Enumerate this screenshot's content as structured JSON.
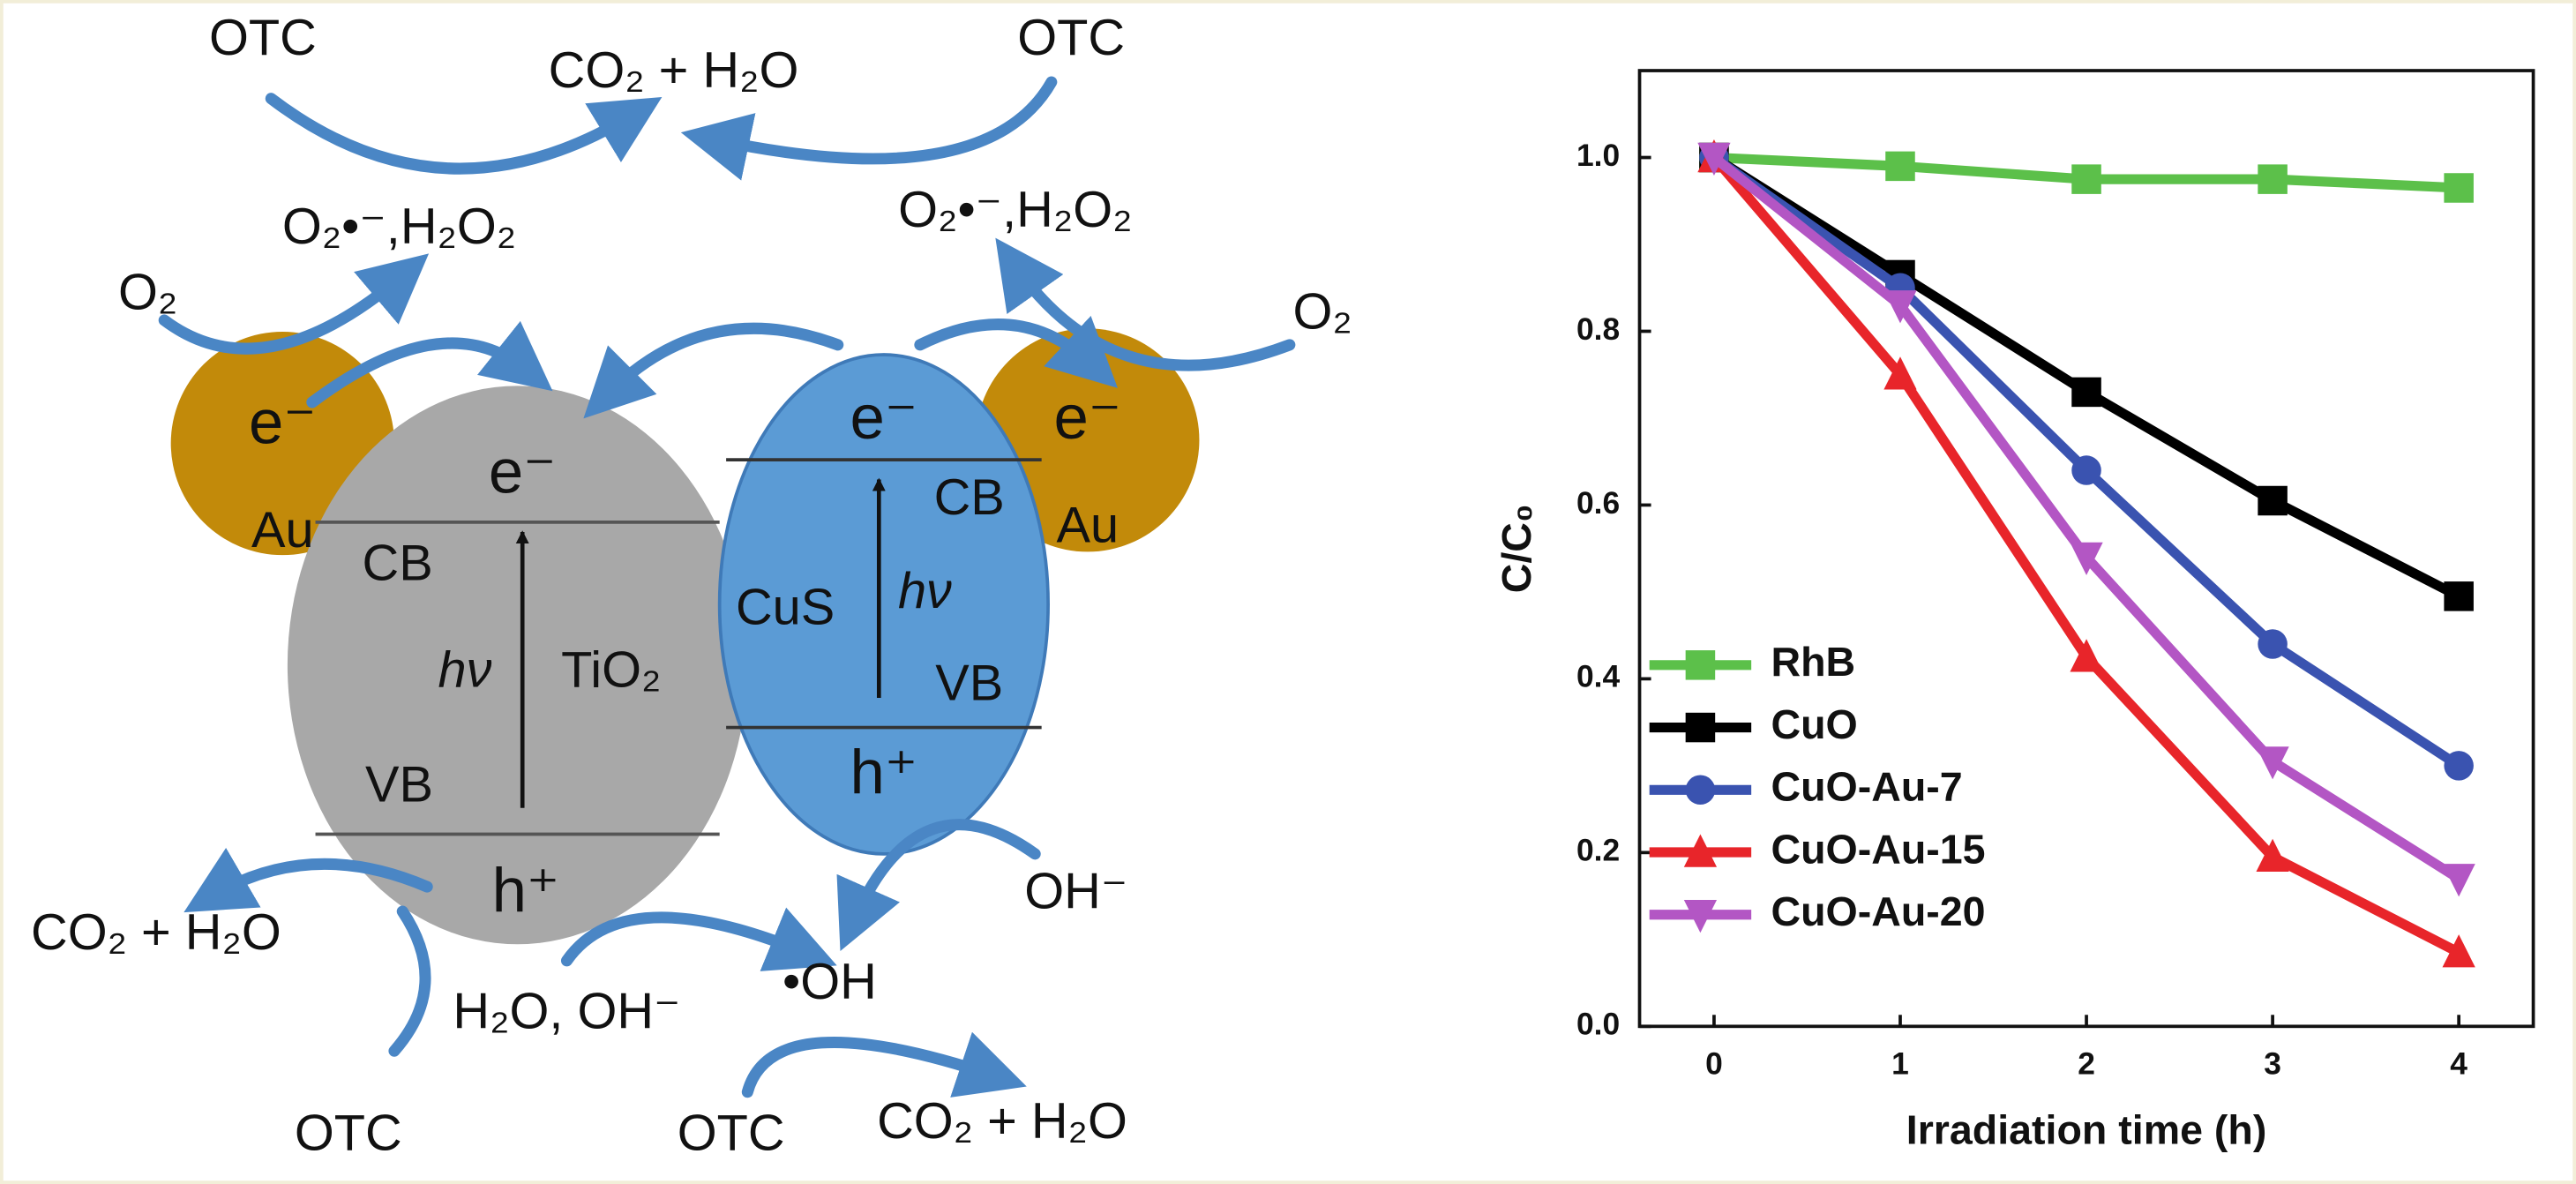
{
  "diagram": {
    "texts": [
      "OTC",
      "CO₂ + H₂O",
      "OTC",
      "O₂•⁻,H₂O₂",
      "O₂•⁻,H₂O₂",
      "O₂",
      "O₂",
      "e⁻",
      "Au",
      "e⁻",
      "CB",
      "hν",
      "TiO₂",
      "VB",
      "h⁺",
      "e⁻",
      "CB",
      "CuS",
      "hν",
      "VB",
      "h⁺",
      "e⁻",
      "Au",
      "CO₂ + H₂O",
      "OTC",
      "H₂O, OH⁻",
      "•OH",
      "OH⁻",
      "OTC",
      "CO₂ + H₂O"
    ]
  },
  "chart_data": {
    "type": "line",
    "x_label": "Irradiation time (h)",
    "y_label": "C/C₀",
    "x": [
      0,
      1,
      2,
      3,
      4
    ],
    "series": [
      {
        "name": "RhB",
        "color": "#5cc04a",
        "marker": "square",
        "values": [
          1.0,
          0.99,
          0.975,
          0.975,
          0.965
        ]
      },
      {
        "name": "CuO",
        "color": "#000000",
        "marker": "square",
        "values": [
          1.0,
          0.865,
          0.73,
          0.605,
          0.495
        ]
      },
      {
        "name": "CuO-Au-7",
        "color": "#3a53b0",
        "marker": "circle",
        "values": [
          1.0,
          0.85,
          0.64,
          0.44,
          0.3
        ]
      },
      {
        "name": "CuO-Au-15",
        "color": "#e8252a",
        "marker": "triangle-up",
        "values": [
          1.0,
          0.75,
          0.425,
          0.195,
          0.085
        ]
      },
      {
        "name": "CuO-Au-20",
        "color": "#b356c4",
        "marker": "triangle-down",
        "values": [
          1.0,
          0.83,
          0.54,
          0.305,
          0.17
        ]
      }
    ],
    "xlim": [
      -0.4,
      4.4
    ],
    "ylim": [
      0,
      1.1
    ],
    "xticks": [
      0,
      1,
      2,
      3,
      4
    ],
    "yticks": [
      {
        "value": 0,
        "label": "0.0"
      },
      0.2,
      0.4,
      0.6,
      0.8,
      {
        "value": 1,
        "label": "1.0"
      }
    ],
    "legend": "lower left",
    "grid": false
  }
}
